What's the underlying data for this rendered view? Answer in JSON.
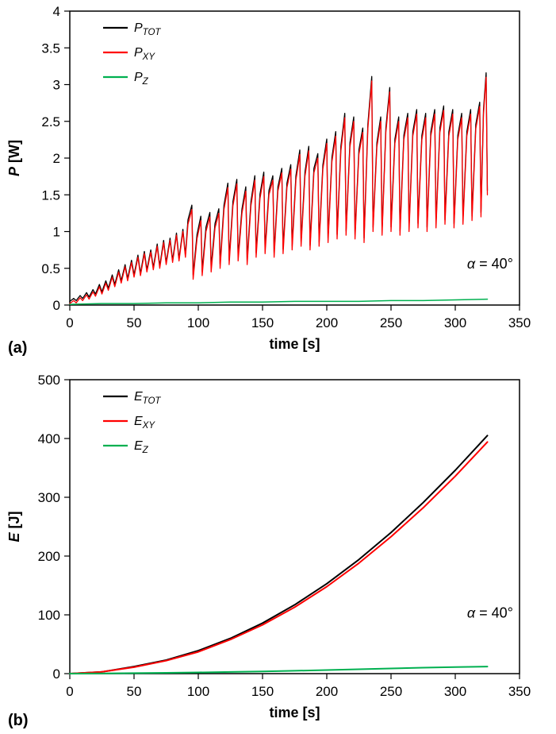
{
  "panels": [
    {
      "label": "(a)"
    },
    {
      "label": "(b)"
    }
  ],
  "colors": {
    "total": "#000000",
    "xy": "#ff0000",
    "z": "#00b050",
    "frame": "#000000"
  },
  "chart_data": [
    {
      "type": "line",
      "panel": "(a)",
      "xlabel": "time [s]",
      "ylabel_var": "P",
      "ylabel_unit": " [W]",
      "xlim": [
        0,
        350
      ],
      "ylim": [
        0,
        4
      ],
      "xticks": [
        0,
        50,
        100,
        150,
        200,
        250,
        300,
        350
      ],
      "xtick_labels": [
        "0",
        "50",
        "100",
        "150",
        "200",
        "250",
        "300",
        "350"
      ],
      "yticks": [
        0,
        0.5,
        1,
        1.5,
        2,
        2.5,
        3,
        3.5,
        4
      ],
      "ytick_labels": [
        "0",
        "0.5",
        "1",
        "1.5",
        "2",
        "2.5",
        "3",
        "3.5",
        "4"
      ],
      "grid": false,
      "legend_position": "top-left",
      "annotation": {
        "text": "α = 40°",
        "x": 345,
        "y": 0.5
      },
      "x": [
        0,
        3,
        5,
        8,
        10,
        13,
        15,
        18,
        20,
        23,
        25,
        28,
        30,
        33,
        35,
        38,
        40,
        43,
        45,
        48,
        50,
        53,
        55,
        58,
        60,
        63,
        65,
        68,
        70,
        73,
        75,
        78,
        80,
        83,
        85,
        88,
        90,
        92,
        95,
        96,
        99,
        102,
        103,
        106,
        109,
        110,
        113,
        116,
        117,
        120,
        123,
        124,
        127,
        130,
        131,
        134,
        137,
        138,
        141,
        144,
        145,
        148,
        151,
        152,
        155,
        158,
        159,
        162,
        165,
        166,
        169,
        172,
        173,
        176,
        179,
        180,
        183,
        186,
        187,
        190,
        193,
        194,
        197,
        200,
        201,
        204,
        207,
        208,
        211,
        214,
        215,
        218,
        221,
        222,
        225,
        228,
        229,
        232,
        235,
        236,
        239,
        242,
        243,
        246,
        249,
        250,
        253,
        256,
        257,
        260,
        263,
        264,
        267,
        270,
        271,
        274,
        277,
        278,
        281,
        284,
        285,
        288,
        291,
        292,
        295,
        298,
        299,
        302,
        305,
        306,
        309,
        312,
        313,
        316,
        319,
        320,
        322,
        324,
        325
      ],
      "series": [
        {
          "name": "P_TOT",
          "label_base": "P",
          "label_sub": "TOT",
          "color": "#000000",
          "width": 1.3,
          "y": [
            0.05,
            0.09,
            0.06,
            0.13,
            0.09,
            0.17,
            0.11,
            0.21,
            0.15,
            0.28,
            0.18,
            0.33,
            0.23,
            0.41,
            0.28,
            0.48,
            0.33,
            0.55,
            0.36,
            0.61,
            0.41,
            0.68,
            0.43,
            0.73,
            0.48,
            0.75,
            0.51,
            0.83,
            0.53,
            0.88,
            0.58,
            0.91,
            0.61,
            0.98,
            0.63,
            1.03,
            0.68,
            1.16,
            1.36,
            0.41,
            0.96,
            1.21,
            0.46,
            1.06,
            1.26,
            0.51,
            1.11,
            1.31,
            0.56,
            1.36,
            1.66,
            0.61,
            1.41,
            1.71,
            0.66,
            1.31,
            1.61,
            0.61,
            1.41,
            1.76,
            0.71,
            1.51,
            1.81,
            0.76,
            1.56,
            1.76,
            0.71,
            1.61,
            1.86,
            0.76,
            1.66,
            1.91,
            0.81,
            1.76,
            2.11,
            0.86,
            1.81,
            2.16,
            0.81,
            1.86,
            2.06,
            0.86,
            1.91,
            2.26,
            0.91,
            2.01,
            2.36,
            0.96,
            2.16,
            2.61,
            1.01,
            2.21,
            2.56,
            0.96,
            2.11,
            2.41,
            0.91,
            2.46,
            3.11,
            1.06,
            2.21,
            2.56,
            1.01,
            2.41,
            2.96,
            1.06,
            2.26,
            2.56,
            1.01,
            2.31,
            2.61,
            1.06,
            2.36,
            2.66,
            1.11,
            2.31,
            2.61,
            1.06,
            2.36,
            2.66,
            1.11,
            2.41,
            2.71,
            1.16,
            2.36,
            2.66,
            1.11,
            2.31,
            2.61,
            1.16,
            2.36,
            2.66,
            1.21,
            2.46,
            2.76,
            1.26,
            2.66,
            3.16,
            1.56
          ]
        },
        {
          "name": "P_XY",
          "label_base": "P",
          "label_sub": "XY",
          "color": "#ff0000",
          "width": 1.3,
          "y": [
            0.02,
            0.06,
            0.03,
            0.1,
            0.06,
            0.14,
            0.08,
            0.18,
            0.12,
            0.25,
            0.15,
            0.3,
            0.2,
            0.38,
            0.25,
            0.45,
            0.3,
            0.52,
            0.33,
            0.58,
            0.38,
            0.65,
            0.4,
            0.7,
            0.45,
            0.72,
            0.48,
            0.8,
            0.5,
            0.85,
            0.55,
            0.88,
            0.58,
            0.95,
            0.6,
            1.0,
            0.65,
            1.1,
            1.3,
            0.35,
            0.9,
            1.15,
            0.4,
            1.0,
            1.2,
            0.45,
            1.05,
            1.25,
            0.5,
            1.3,
            1.6,
            0.55,
            1.35,
            1.65,
            0.6,
            1.25,
            1.55,
            0.55,
            1.35,
            1.7,
            0.65,
            1.45,
            1.75,
            0.7,
            1.5,
            1.7,
            0.65,
            1.55,
            1.8,
            0.7,
            1.6,
            1.85,
            0.75,
            1.7,
            2.05,
            0.8,
            1.75,
            2.1,
            0.75,
            1.8,
            2.0,
            0.8,
            1.85,
            2.2,
            0.85,
            1.95,
            2.3,
            0.9,
            2.1,
            2.55,
            0.95,
            2.15,
            2.5,
            0.9,
            2.05,
            2.35,
            0.85,
            2.4,
            3.05,
            1.0,
            2.15,
            2.5,
            0.95,
            2.35,
            2.9,
            1.0,
            2.2,
            2.5,
            0.95,
            2.25,
            2.55,
            1.0,
            2.3,
            2.6,
            1.05,
            2.25,
            2.55,
            1.0,
            2.3,
            2.6,
            1.05,
            2.35,
            2.65,
            1.1,
            2.3,
            2.6,
            1.05,
            2.25,
            2.55,
            1.1,
            2.3,
            2.6,
            1.15,
            2.4,
            2.7,
            1.2,
            2.6,
            3.1,
            1.5
          ]
        },
        {
          "name": "P_Z",
          "label_base": "P",
          "label_sub": "Z",
          "color": "#00b050",
          "width": 1.5,
          "x": [
            0,
            25,
            50,
            75,
            100,
            125,
            150,
            175,
            200,
            225,
            250,
            275,
            300,
            325
          ],
          "y": [
            0.01,
            0.02,
            0.02,
            0.03,
            0.03,
            0.04,
            0.04,
            0.05,
            0.05,
            0.05,
            0.06,
            0.06,
            0.07,
            0.08
          ]
        }
      ]
    },
    {
      "type": "line",
      "panel": "(b)",
      "xlabel": "time [s]",
      "ylabel_var": "E",
      "ylabel_unit": " [J]",
      "xlim": [
        0,
        350
      ],
      "ylim": [
        0,
        500
      ],
      "xticks": [
        0,
        50,
        100,
        150,
        200,
        250,
        300,
        350
      ],
      "xtick_labels": [
        "0",
        "50",
        "100",
        "150",
        "200",
        "250",
        "300",
        "350"
      ],
      "yticks": [
        0,
        100,
        200,
        300,
        400,
        500
      ],
      "ytick_labels": [
        "0",
        "100",
        "200",
        "300",
        "400",
        "500"
      ],
      "grid": false,
      "legend_position": "top-left",
      "annotation": {
        "text": "α = 40°",
        "x": 345,
        "y": 95
      },
      "x": [
        0,
        25,
        50,
        75,
        100,
        125,
        150,
        175,
        200,
        225,
        250,
        275,
        300,
        325
      ],
      "series": [
        {
          "name": "E_TOT",
          "label_base": "E",
          "label_sub": "TOT",
          "color": "#000000",
          "width": 2,
          "y": [
            0,
            3,
            12,
            23,
            39,
            60,
            86,
            117,
            153,
            194,
            240,
            291,
            346,
            405
          ]
        },
        {
          "name": "E_XY",
          "label_base": "E",
          "label_sub": "XY",
          "color": "#ff0000",
          "width": 2,
          "y": [
            0,
            3,
            11,
            22,
            37,
            58,
            83,
            113,
            148,
            188,
            233,
            282,
            336,
            394
          ]
        },
        {
          "name": "E_Z",
          "label_base": "E",
          "label_sub": "Z",
          "color": "#00b050",
          "width": 2,
          "y": [
            0,
            0.3,
            0.8,
            1.4,
            2.0,
            2.8,
            3.8,
            4.9,
            6.1,
            7.4,
            8.8,
            10.2,
            11.1,
            12.0
          ]
        }
      ]
    }
  ]
}
